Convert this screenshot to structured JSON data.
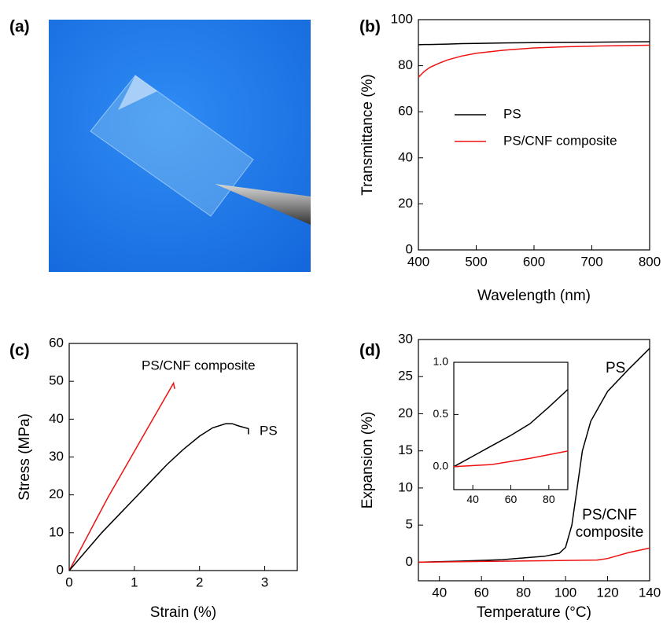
{
  "image_panel": {
    "panel_label": "(a)"
  },
  "chart_data": [
    {
      "type": "line",
      "panel_label": "(b)",
      "xlabel": "Wavelength (nm)",
      "ylabel": "Transmittance (%)",
      "xlim": [
        400,
        800
      ],
      "xticks": [
        400,
        500,
        600,
        700,
        800
      ],
      "ylim": [
        0,
        100
      ],
      "yticks": [
        0,
        20,
        40,
        60,
        80,
        100
      ],
      "legend": "center-left",
      "series": [
        {
          "name": "PS",
          "color": "#000000",
          "x": [
            400,
            410,
            420,
            435,
            450,
            475,
            500,
            550,
            600,
            650,
            700,
            750,
            800
          ],
          "values": [
            89.1,
            89.2,
            89.2,
            89.3,
            89.4,
            89.6,
            89.7,
            89.9,
            90.0,
            90.1,
            90.2,
            90.3,
            90.4
          ]
        },
        {
          "name": "PS/CNF composite",
          "color": "#ee1111",
          "x": [
            400,
            410,
            420,
            435,
            450,
            475,
            500,
            550,
            600,
            650,
            700,
            750,
            800
          ],
          "values": [
            75,
            77.5,
            79.3,
            81,
            82.5,
            84.2,
            85.4,
            86.8,
            87.7,
            88.2,
            88.5,
            88.7,
            88.9
          ]
        }
      ]
    },
    {
      "type": "line",
      "panel_label": "(c)",
      "xlabel": "Strain (%)",
      "ylabel": "Stress (MPa)",
      "xlim": [
        0,
        3.5
      ],
      "xticks": [
        0,
        1,
        2,
        3
      ],
      "ylim": [
        0,
        60
      ],
      "yticks": [
        0,
        10,
        20,
        30,
        40,
        50,
        60
      ],
      "series": [
        {
          "name": "PS/CNF composite",
          "color": "#ee1111",
          "x": [
            0,
            0.2,
            0.4,
            0.6,
            0.8,
            1.0,
            1.2,
            1.4,
            1.6,
            1.62
          ],
          "values": [
            0,
            6.5,
            13,
            19.5,
            25.5,
            31.5,
            37.5,
            43.5,
            49.5,
            48
          ]
        },
        {
          "name": "PS",
          "color": "#000000",
          "x": [
            0,
            0.25,
            0.5,
            0.75,
            1.0,
            1.25,
            1.5,
            1.75,
            2.0,
            2.2,
            2.4,
            2.5,
            2.6,
            2.75,
            2.75
          ],
          "values": [
            0,
            5,
            10,
            14.5,
            19,
            23.5,
            28,
            32,
            35.5,
            37.7,
            38.8,
            38.8,
            38.2,
            37.5,
            36
          ]
        }
      ]
    },
    {
      "type": "line",
      "panel_label": "(d)",
      "xlabel": "Temperature (°C)",
      "ylabel": "Expansion (%)",
      "xlim": [
        30,
        140
      ],
      "xticks": [
        40,
        60,
        80,
        100,
        120,
        140
      ],
      "ylim": [
        -2.5,
        30
      ],
      "yticks": [
        0,
        5,
        10,
        15,
        20,
        25,
        30
      ],
      "series": [
        {
          "name": "PS",
          "color": "#000000",
          "x": [
            30,
            50,
            70,
            90,
            97,
            100,
            103,
            105,
            108,
            112,
            120,
            130,
            140
          ],
          "values": [
            0,
            0.15,
            0.35,
            0.8,
            1.2,
            2,
            5,
            9,
            15,
            19,
            23,
            26,
            28.8
          ]
        },
        {
          "name": "PS/CNF composite",
          "color": "#ee1111",
          "x": [
            30,
            60,
            90,
            115,
            120,
            130,
            140
          ],
          "values": [
            0,
            0.1,
            0.2,
            0.3,
            0.5,
            1.3,
            1.9
          ]
        }
      ],
      "annotations": [
        {
          "lines": [
            "PS"
          ],
          "color": "#000000"
        },
        {
          "lines": [
            "PS/CNF",
            "composite"
          ],
          "color": "#ee1111"
        }
      ]
    },
    {
      "type": "line",
      "xlim": [
        30,
        90
      ],
      "xticks": [
        40,
        60,
        80
      ],
      "ylim": [
        -0.22,
        1.0
      ],
      "yticks": [
        {
          "value": 0,
          "label": "0.0"
        },
        0.5,
        {
          "value": 1,
          "label": "1.0"
        }
      ],
      "series": [
        {
          "color": "#000000",
          "x": [
            30,
            40,
            50,
            60,
            70,
            80,
            90
          ],
          "values": [
            0,
            0.1,
            0.2,
            0.3,
            0.41,
            0.57,
            0.74
          ]
        },
        {
          "color": "#ee1111",
          "x": [
            30,
            50,
            70,
            90
          ],
          "values": [
            0,
            0.02,
            0.08,
            0.15
          ]
        }
      ]
    }
  ]
}
